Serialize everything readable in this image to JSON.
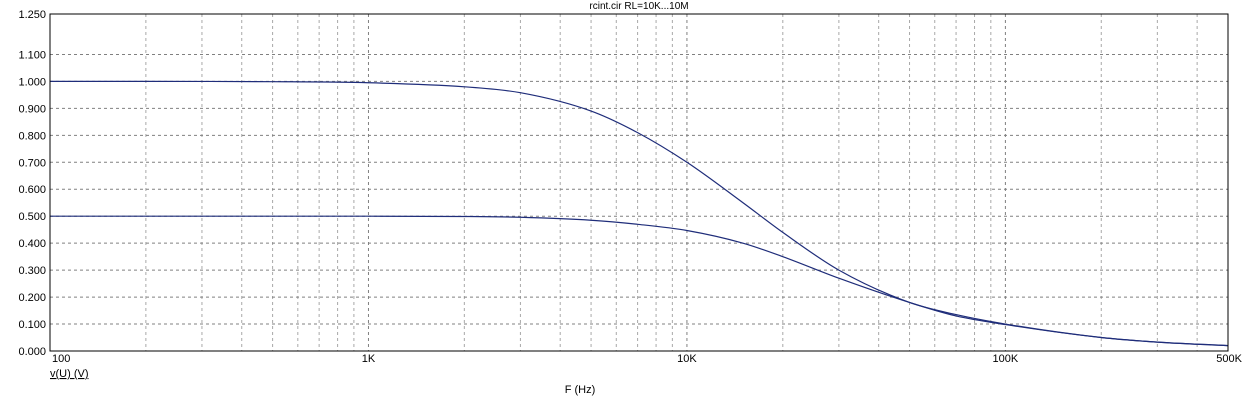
{
  "chart_data": {
    "type": "line",
    "title": "rcint.cir RL=10K...10M",
    "xlabel": "F (Hz)",
    "ylabel": "v(U) (V)",
    "x_scale": "log",
    "xlim": [
      100,
      500000
    ],
    "ylim": [
      0,
      1.25
    ],
    "xticks": [
      {
        "value": 100,
        "label": "100"
      },
      {
        "value": 1000,
        "label": "1K"
      },
      {
        "value": 10000,
        "label": "10K"
      },
      {
        "value": 100000,
        "label": "100K"
      },
      {
        "value": 500000,
        "label": "500K"
      }
    ],
    "yticks": [
      {
        "value": 0.0,
        "label": "0.000"
      },
      {
        "value": 0.1,
        "label": "0.100"
      },
      {
        "value": 0.2,
        "label": "0.200"
      },
      {
        "value": 0.3,
        "label": "0.300"
      },
      {
        "value": 0.4,
        "label": "0.400"
      },
      {
        "value": 0.5,
        "label": "0.500"
      },
      {
        "value": 0.6,
        "label": "0.600"
      },
      {
        "value": 0.7,
        "label": "0.700"
      },
      {
        "value": 0.8,
        "label": "0.800"
      },
      {
        "value": 0.9,
        "label": "0.900"
      },
      {
        "value": 1.0,
        "label": "1.000"
      },
      {
        "value": 1.1,
        "label": "1.100"
      },
      {
        "value": 1.25,
        "label": "1.250"
      }
    ],
    "grid": true,
    "series": [
      {
        "color": "#1f2d7a",
        "x": [
          100,
          200,
          500,
          1000,
          2000,
          3000,
          5000,
          7000,
          10000,
          15000,
          20000,
          30000,
          50000,
          70000,
          100000,
          200000,
          300000,
          500000
        ],
        "y": [
          1.0,
          1.0,
          0.999,
          0.995,
          0.98,
          0.958,
          0.89,
          0.81,
          0.7,
          0.55,
          0.44,
          0.3,
          0.18,
          0.135,
          0.1,
          0.05,
          0.033,
          0.02
        ]
      },
      {
        "color": "#1f2d7a",
        "x": [
          100,
          200,
          500,
          1000,
          2000,
          3000,
          5000,
          7000,
          10000,
          15000,
          20000,
          30000,
          50000,
          70000,
          100000,
          200000,
          300000,
          500000
        ],
        "y": [
          0.5,
          0.5,
          0.5,
          0.5,
          0.499,
          0.496,
          0.485,
          0.47,
          0.447,
          0.4,
          0.35,
          0.27,
          0.18,
          0.13,
          0.098,
          0.05,
          0.033,
          0.02
        ]
      }
    ]
  }
}
